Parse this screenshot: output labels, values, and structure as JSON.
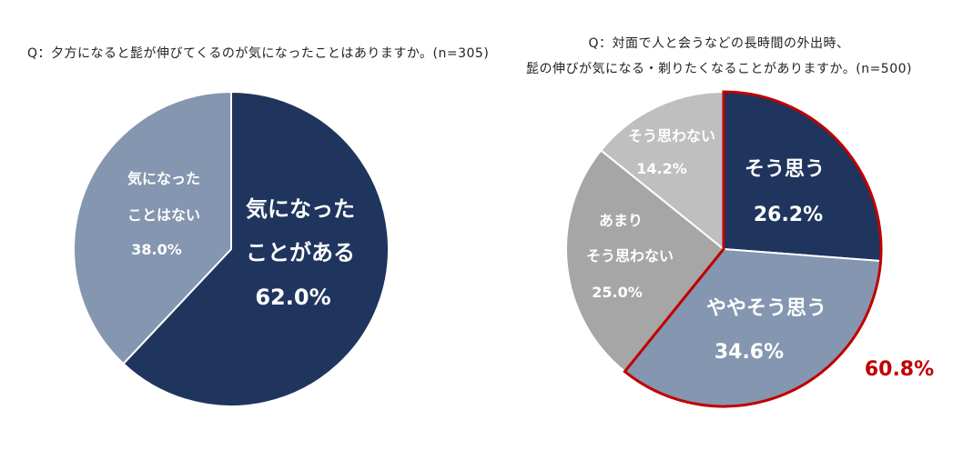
{
  "charts": [
    {
      "title": "Q：夕方になると髭が伸びてくるのが気になったことはありますか。(n=305)"
    },
    {
      "title_line1": "Q：対面で人と会うなどの長時間の外出時、",
      "title_line2": "髭の伸びが気になる・剃りたくなることがありますか。(n=500)",
      "highlight_total": "60.8%"
    }
  ],
  "chart_data": [
    {
      "type": "pie",
      "title": "Q：夕方になると髭が伸びてくるのが気になったことはありますか。(n=305)",
      "slices": [
        {
          "label_line1": "気になった",
          "label_line2": "ことがある",
          "value": 62.0,
          "value_text": "62.0%",
          "color": "#1f355e"
        },
        {
          "label_line1": "気になった",
          "label_line2": "ことはない",
          "value": 38.0,
          "value_text": "38.0%",
          "color": "#8496b0"
        }
      ]
    },
    {
      "type": "pie",
      "title": "Q：対面で人と会うなどの長時間の外出時、髭の伸びが気になる・剃りたくなることがありますか。(n=500)",
      "slices": [
        {
          "label_line1": "そう思う",
          "label_line2": "",
          "value": 26.2,
          "value_text": "26.2%",
          "color": "#1f355e"
        },
        {
          "label_line1": "ややそう思う",
          "label_line2": "",
          "value": 34.6,
          "value_text": "34.6%",
          "color": "#8496b0"
        },
        {
          "label_line1": "あまり",
          "label_line2": "そう思わない",
          "value": 25.0,
          "value_text": "25.0%",
          "color": "#a6a6a6"
        },
        {
          "label_line1": "そう思わない",
          "label_line2": "",
          "value": 14.2,
          "value_text": "14.2%",
          "color": "#bfbfbf"
        }
      ],
      "highlight": {
        "slices": [
          "そう思う",
          "ややそう思う"
        ],
        "total_text": "60.8%",
        "color": "#c00000"
      }
    }
  ]
}
